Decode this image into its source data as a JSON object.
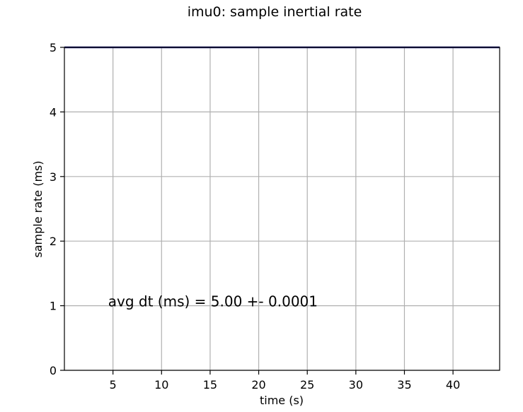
{
  "chart_data": {
    "type": "line",
    "title": "imu0: sample inertial rate",
    "xlabel": "time (s)",
    "ylabel": "sample rate (ms)",
    "xlim": [
      0,
      44.8
    ],
    "ylim": [
      0,
      5
    ],
    "xticks": [
      5,
      10,
      15,
      20,
      25,
      30,
      35,
      40
    ],
    "xtick_labels": [
      "5",
      "10",
      "15",
      "20",
      "25",
      "30",
      "35",
      "40"
    ],
    "yticks": [
      0,
      1,
      2,
      3,
      4,
      5
    ],
    "ytick_labels": [
      "0",
      "1",
      "2",
      "3",
      "4",
      "5"
    ],
    "grid": true,
    "series": [
      {
        "color": "#1f1f7a",
        "x": [
          0,
          44.8
        ],
        "y": [
          5.0,
          5.0
        ]
      }
    ],
    "annotation": {
      "text": "avg dt (ms) = 5.00 +- 0.0001",
      "x": 4.5,
      "y": 1.0
    }
  }
}
